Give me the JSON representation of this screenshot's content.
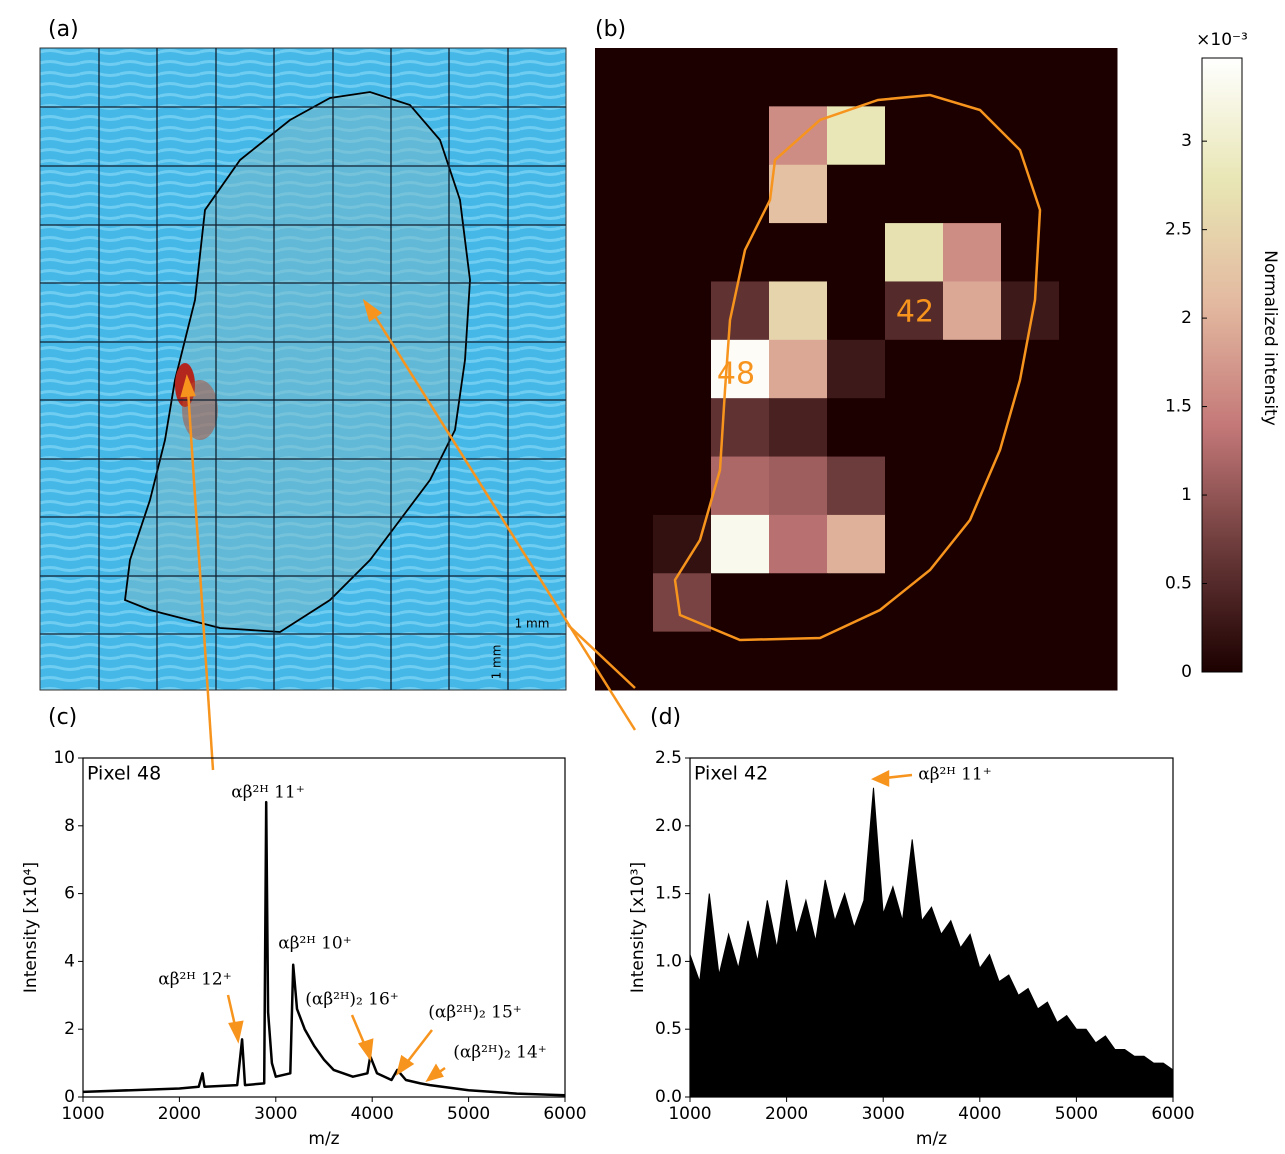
{
  "chart_data": [
    {
      "type": "image",
      "title": "(a)",
      "scale_labels": [
        "1 mm",
        "1 mm"
      ]
    },
    {
      "type": "heatmap",
      "title": "(b)",
      "z": [
        [
          0,
          0,
          0,
          0,
          0,
          0,
          0,
          0,
          0
        ],
        [
          0,
          0,
          0,
          1.6,
          2.8,
          0,
          0,
          0,
          0
        ],
        [
          0,
          0,
          0,
          2.2,
          0,
          0,
          0,
          0,
          0
        ],
        [
          0,
          0,
          0,
          0,
          0,
          2.7,
          1.6,
          0,
          0
        ],
        [
          0,
          0,
          0.6,
          2.5,
          0,
          0.5,
          1.9,
          0.3,
          0
        ],
        [
          0,
          0,
          3.4,
          1.9,
          0.3,
          0,
          0,
          0,
          0
        ],
        [
          0,
          0,
          0.6,
          0.4,
          0,
          0,
          0,
          0,
          0
        ],
        [
          0,
          0,
          1.2,
          1.1,
          0.7,
          0,
          0,
          0,
          0
        ],
        [
          0,
          0.2,
          3.3,
          1.3,
          2.0,
          0,
          0,
          0,
          0
        ],
        [
          0,
          0.8,
          0,
          0,
          0,
          0,
          0,
          0,
          0
        ],
        [
          0,
          0,
          0,
          0,
          0,
          0,
          0,
          0,
          0
        ]
      ],
      "pixel_labels": [
        "48",
        "42"
      ],
      "colormap": [
        "#1c0000",
        "#6b3a3a",
        "#c47878",
        "#e3b9a0",
        "#e8e6b4",
        "#ffffff"
      ],
      "clim": [
        0,
        3.47
      ],
      "cticks": [
        0,
        0.5,
        1,
        1.5,
        2,
        2.5,
        3
      ],
      "colorbar_label": "Normalized intensity",
      "colorbar_scale": "×10⁻³"
    },
    {
      "type": "line",
      "title": "(c)",
      "subtitle": "Pixel 48",
      "color": "#000000",
      "xlabel": "m/z",
      "ylabel": "Intensity [x10⁴]",
      "x": [
        1000,
        1500,
        2000,
        2200,
        2240,
        2260,
        2600,
        2650,
        2680,
        2880,
        2900,
        2920,
        2960,
        3000,
        3150,
        3180,
        3220,
        3300,
        3400,
        3500,
        3600,
        3800,
        3950,
        3980,
        4050,
        4200,
        4260,
        4350,
        4500,
        4600,
        5000,
        5500,
        6000
      ],
      "values": [
        0.15,
        0.2,
        0.25,
        0.3,
        0.7,
        0.3,
        0.35,
        1.7,
        0.35,
        0.4,
        8.7,
        2.5,
        1.0,
        0.6,
        0.7,
        3.9,
        2.6,
        2.0,
        1.5,
        1.1,
        0.8,
        0.6,
        0.7,
        1.2,
        0.7,
        0.5,
        0.8,
        0.5,
        0.4,
        0.35,
        0.2,
        0.1,
        0.05
      ],
      "xlim": [
        1000,
        6000
      ],
      "xticks": [
        1000,
        2000,
        3000,
        4000,
        5000,
        6000
      ],
      "ylim": [
        0,
        10
      ],
      "yticks": [
        0,
        2,
        4,
        6,
        8,
        10
      ],
      "annotations": [
        "αβ²ᴴ 11⁺",
        "αβ²ᴴ 10⁺",
        "αβ²ᴴ  12⁺",
        "(αβ²ᴴ)₂ 16⁺",
        "(αβ²ᴴ)₂ 15⁺",
        "(αβ²ᴴ)₂ 14⁺"
      ]
    },
    {
      "type": "area",
      "title": "(d)",
      "subtitle": "Pixel 42",
      "color": "#000000",
      "xlabel": "m/z",
      "ylabel": "Intensity [x10³]",
      "x": [
        1000,
        1100,
        1200,
        1300,
        1400,
        1500,
        1600,
        1700,
        1800,
        1900,
        2000,
        2100,
        2200,
        2300,
        2400,
        2500,
        2600,
        2700,
        2800,
        2900,
        3000,
        3100,
        3200,
        3300,
        3400,
        3500,
        3600,
        3700,
        3800,
        3900,
        4000,
        4100,
        4200,
        4300,
        4400,
        4500,
        4600,
        4700,
        4800,
        4900,
        5000,
        5100,
        5200,
        5300,
        5400,
        5500,
        5600,
        5700,
        5800,
        5900,
        6000
      ],
      "values": [
        1.05,
        0.85,
        1.5,
        0.9,
        1.2,
        0.95,
        1.3,
        1.0,
        1.45,
        1.1,
        1.6,
        1.2,
        1.45,
        1.15,
        1.6,
        1.3,
        1.5,
        1.25,
        1.45,
        2.28,
        1.35,
        1.55,
        1.3,
        1.9,
        1.3,
        1.4,
        1.2,
        1.3,
        1.1,
        1.2,
        0.95,
        1.05,
        0.85,
        0.9,
        0.75,
        0.8,
        0.65,
        0.7,
        0.55,
        0.6,
        0.5,
        0.5,
        0.4,
        0.45,
        0.35,
        0.35,
        0.3,
        0.3,
        0.25,
        0.25,
        0.2
      ],
      "xlim": [
        1000,
        6000
      ],
      "xticks": [
        1000,
        2000,
        3000,
        4000,
        5000,
        6000
      ],
      "ylim": [
        0,
        2.5
      ],
      "yticks": [
        {
          "value": 0,
          "label": "0.0"
        },
        0.5,
        {
          "value": 1,
          "label": "1.0"
        },
        1.5,
        {
          "value": 2,
          "label": "2.0"
        },
        2.5
      ],
      "annotations": [
        "αβ²ᴴ 11⁺"
      ]
    }
  ]
}
